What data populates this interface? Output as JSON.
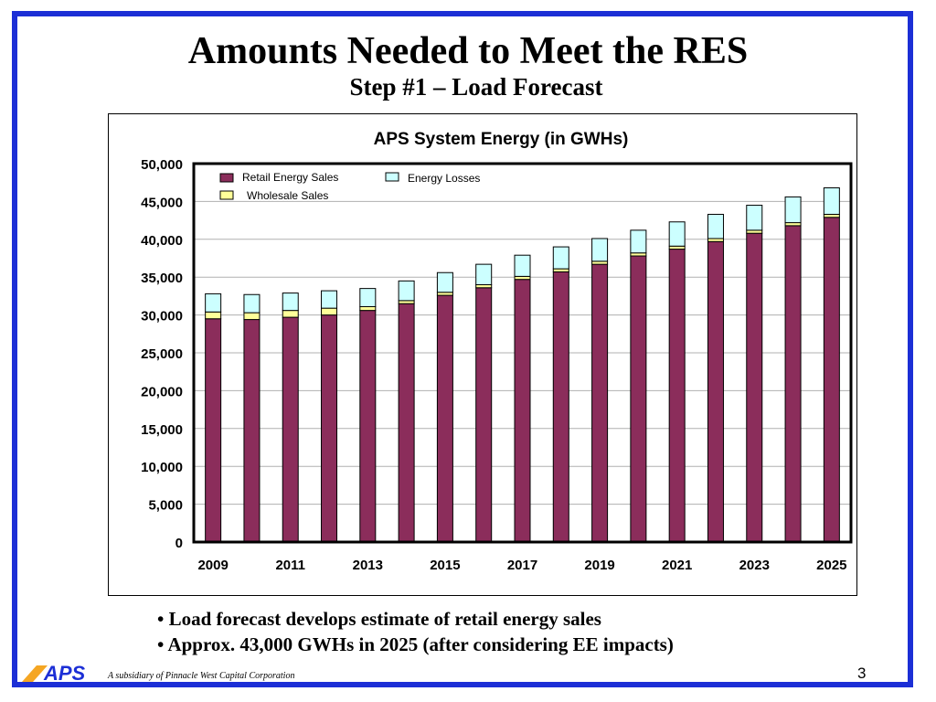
{
  "slide": {
    "title": "Amounts Needed to Meet the RES",
    "subtitle": "Step #1 – Load Forecast",
    "bullets": [
      "• Load forecast develops estimate of retail energy sales",
      "• Approx. 43,000 GWHs in 2025 (after considering EE impacts)"
    ],
    "page_number": "3",
    "footer": "A subsidiary of Pinnacle West Capital Corporation",
    "logo_text": "APS",
    "colors": {
      "border": "#1c2fd6",
      "logo": "#1c2fd6",
      "logo_accent": "#f5a623"
    }
  },
  "chart_data": {
    "type": "bar",
    "stacked": true,
    "title": "APS System Energy (in GWHs)",
    "xlabel": "",
    "ylabel": "",
    "ylim": [
      0,
      50000
    ],
    "yticks": [
      "50,000",
      "45,000",
      "40,000",
      "35,000",
      "30,000",
      "25,000",
      "20,000",
      "15,000",
      "10,000",
      "5,000",
      "0"
    ],
    "ytick_values": [
      50000,
      45000,
      40000,
      35000,
      30000,
      25000,
      20000,
      15000,
      10000,
      5000,
      0
    ],
    "categories": [
      "2009",
      "2010",
      "2011",
      "2012",
      "2013",
      "2014",
      "2015",
      "2016",
      "2017",
      "2018",
      "2019",
      "2020",
      "2021",
      "2022",
      "2023",
      "2024",
      "2025"
    ],
    "x_tick_labels": [
      "2009",
      "2011",
      "2013",
      "2015",
      "2017",
      "2019",
      "2021",
      "2023",
      "2025"
    ],
    "series": [
      {
        "name": "Retail Energy Sales",
        "color": "#8b2d5b",
        "values": [
          29500,
          29400,
          29700,
          30000,
          30600,
          31500,
          32600,
          33600,
          34700,
          35700,
          36700,
          37800,
          38700,
          39700,
          40800,
          41800,
          42900
        ]
      },
      {
        "name": "Wholesale Sales",
        "color": "#ffff99",
        "values": [
          900,
          900,
          900,
          900,
          500,
          400,
          400,
          400,
          400,
          400,
          400,
          400,
          400,
          400,
          400,
          400,
          400
        ]
      },
      {
        "name": "Energy Losses",
        "color": "#ccffff",
        "values": [
          2400,
          2400,
          2300,
          2300,
          2400,
          2600,
          2600,
          2700,
          2800,
          2900,
          3000,
          3000,
          3200,
          3200,
          3300,
          3400,
          3500
        ]
      }
    ],
    "grid": true,
    "legend": "top-left"
  }
}
